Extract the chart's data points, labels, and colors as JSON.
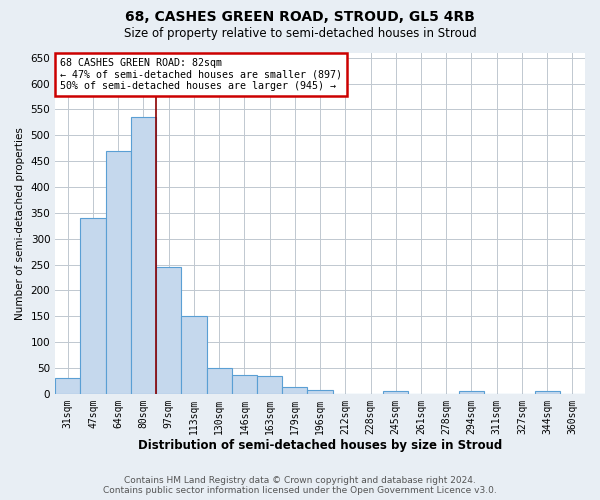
{
  "title1": "68, CASHES GREEN ROAD, STROUD, GL5 4RB",
  "title2": "Size of property relative to semi-detached houses in Stroud",
  "xlabel": "Distribution of semi-detached houses by size in Stroud",
  "ylabel": "Number of semi-detached properties",
  "footer1": "Contains HM Land Registry data © Crown copyright and database right 2024.",
  "footer2": "Contains public sector information licensed under the Open Government Licence v3.0.",
  "bin_labels": [
    "31sqm",
    "47sqm",
    "64sqm",
    "80sqm",
    "97sqm",
    "113sqm",
    "130sqm",
    "146sqm",
    "163sqm",
    "179sqm",
    "196sqm",
    "212sqm",
    "228sqm",
    "245sqm",
    "261sqm",
    "278sqm",
    "294sqm",
    "311sqm",
    "327sqm",
    "344sqm",
    "360sqm"
  ],
  "bar_heights": [
    30,
    340,
    470,
    535,
    245,
    150,
    50,
    37,
    35,
    13,
    8,
    0,
    0,
    5,
    0,
    0,
    6,
    0,
    0,
    5,
    0
  ],
  "bar_color": "#c5d8ed",
  "bar_edge_color": "#5a9fd4",
  "bar_edge_width": 0.8,
  "vline_x": 3.5,
  "vline_color": "#8b0000",
  "annotation_title": "68 CASHES GREEN ROAD: 82sqm",
  "annotation_line1": "← 47% of semi-detached houses are smaller (897)",
  "annotation_line2": "50% of semi-detached houses are larger (945) →",
  "annotation_box_color": "#cc0000",
  "annotation_bg": "#ffffff",
  "ylim": [
    0,
    660
  ],
  "yticks": [
    0,
    50,
    100,
    150,
    200,
    250,
    300,
    350,
    400,
    450,
    500,
    550,
    600,
    650
  ],
  "background_color": "#e8eef4",
  "plot_bg_color": "#ffffff",
  "grid_color": "#c0c8d0",
  "title1_fontsize": 10,
  "title2_fontsize": 8.5,
  "xlabel_fontsize": 8.5,
  "ylabel_fontsize": 7.5,
  "tick_fontsize": 7,
  "footer_fontsize": 6.5
}
